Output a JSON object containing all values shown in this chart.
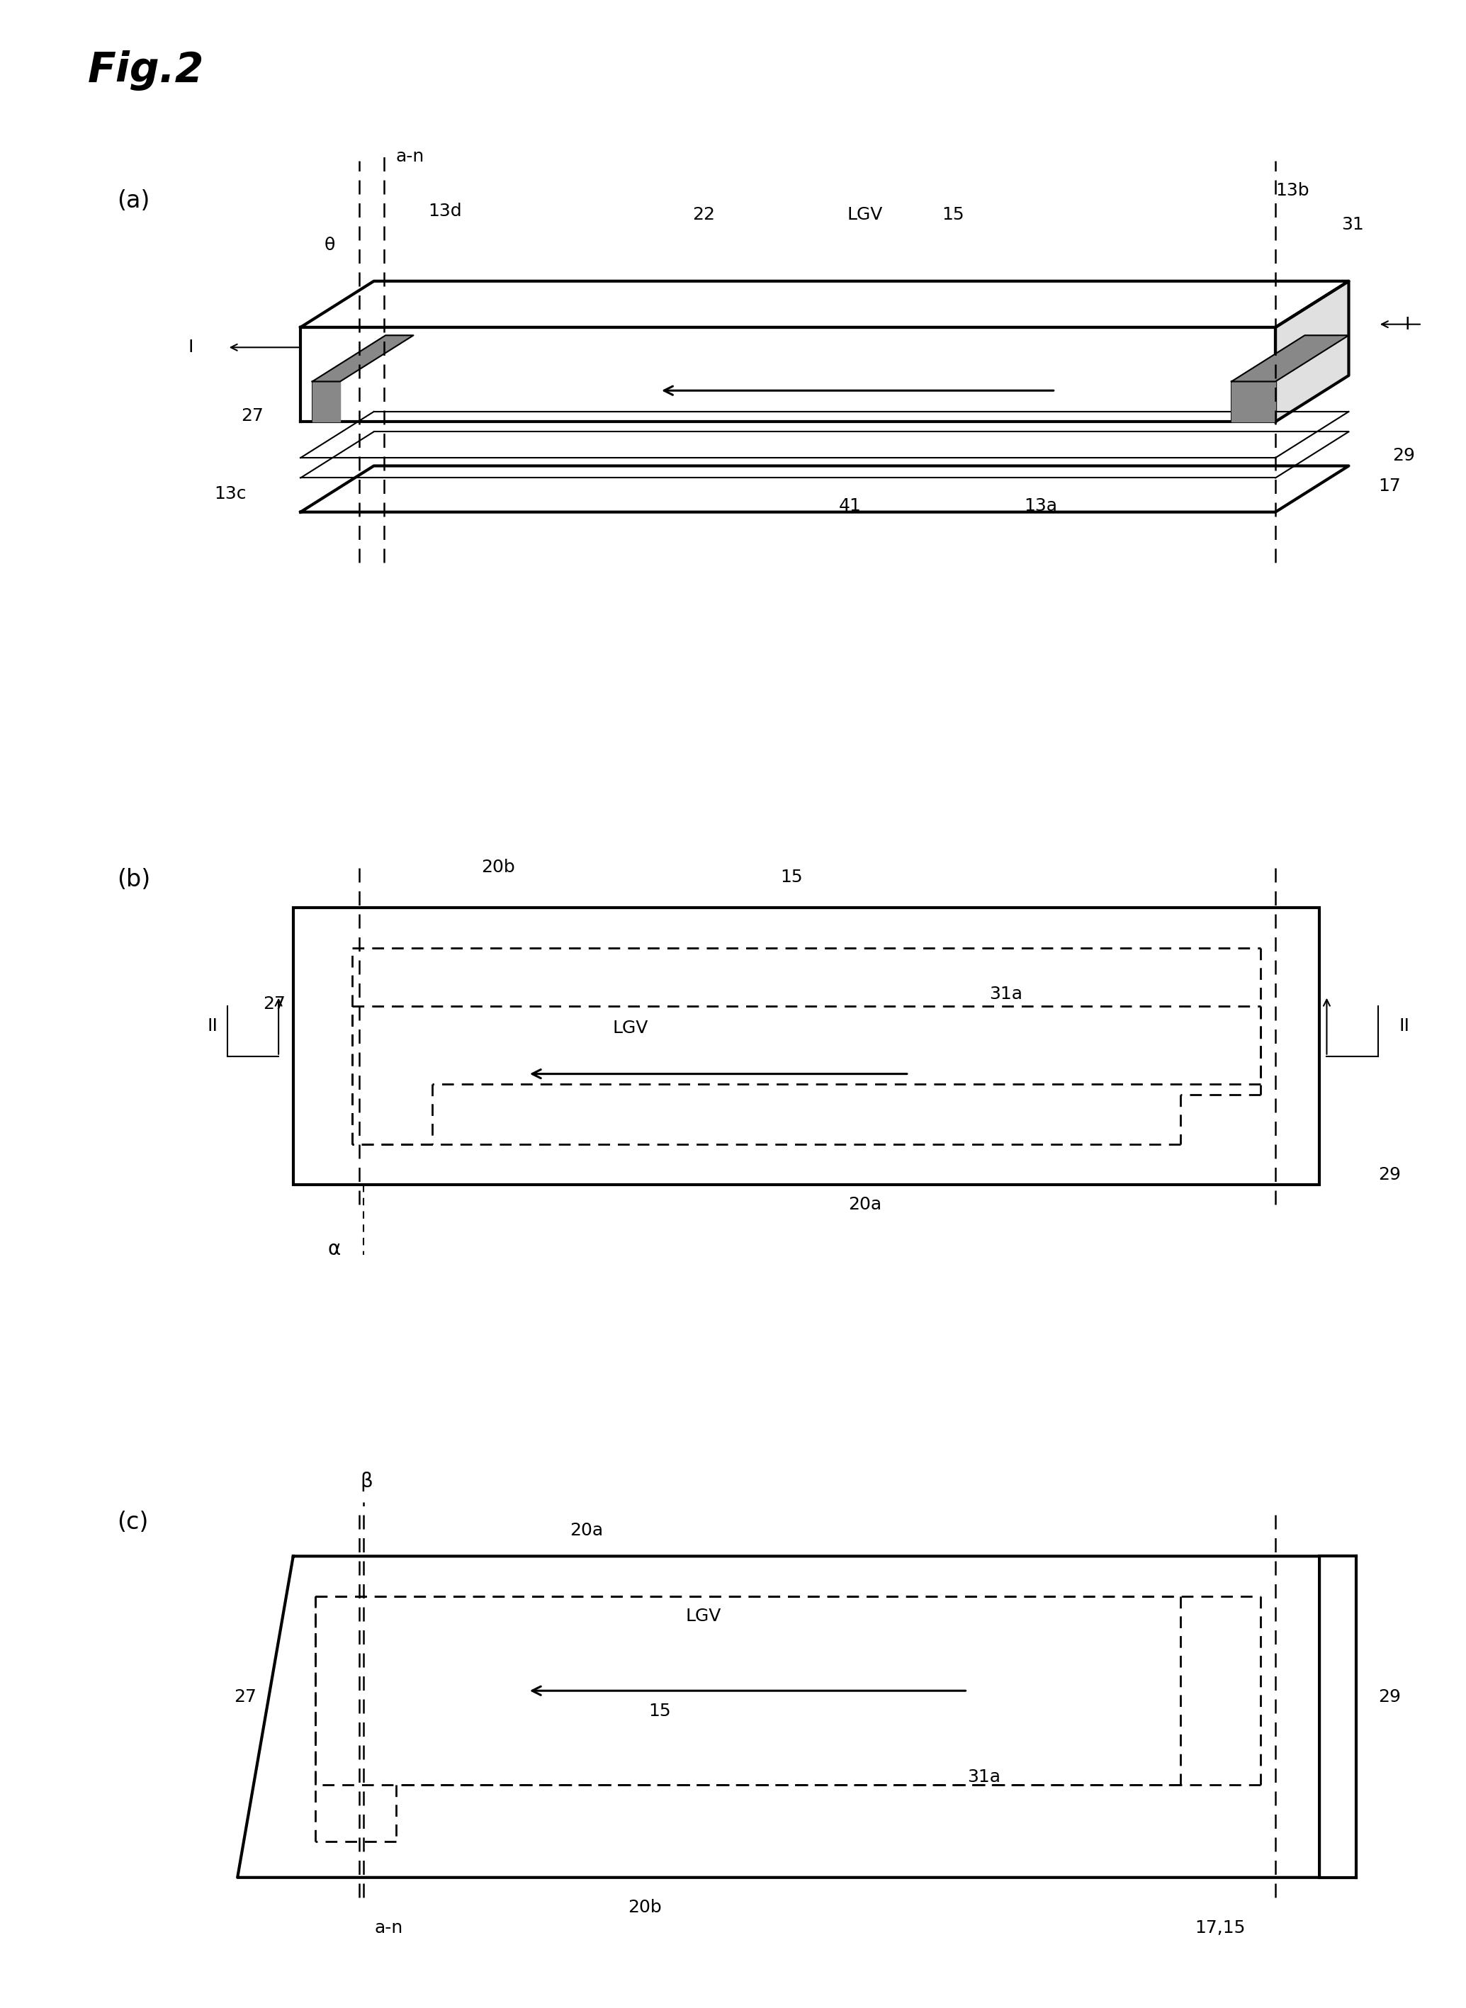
{
  "bg": "#ffffff",
  "lc": "#000000",
  "fig_title": "Fig.2",
  "lw_thick": 3.0,
  "lw_med": 2.0,
  "lw_thin": 1.5,
  "lw_dash": 1.8,
  "fs_title": 42,
  "fs_panel": 24,
  "fs_label": 18,
  "panels": {
    "a": {
      "label": "(a)"
    },
    "b": {
      "label": "(b)"
    },
    "c": {
      "label": "(c)"
    }
  },
  "labels_a": {
    "an": "a-n",
    "theta": "θ",
    "13d": "13d",
    "22": "22",
    "LGV": "LGV",
    "15": "15",
    "13b": "13b",
    "31": "31",
    "I_left": "I",
    "I_right": "I",
    "27": "27",
    "29": "29",
    "17": "17",
    "13c": "13c",
    "41": "41",
    "13a": "13a"
  },
  "labels_b": {
    "20b": "20b",
    "15": "15",
    "27": "27",
    "31a": "31a",
    "LGV": "LGV",
    "II_left": "II",
    "II_right": "II",
    "29": "29",
    "20a": "20a",
    "alpha": "α"
  },
  "labels_c": {
    "20a": "20a",
    "27": "27",
    "LGV": "LGV",
    "15": "15",
    "31a": "31a",
    "29": "29",
    "20b": "20b",
    "17_15": "17,15",
    "an": "a-n",
    "beta": "β"
  }
}
